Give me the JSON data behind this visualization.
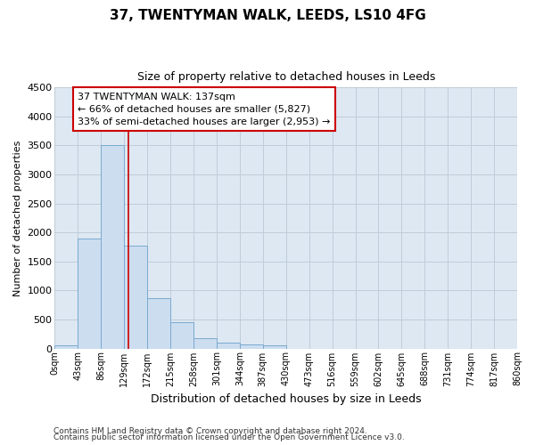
{
  "title": "37, TWENTYMAN WALK, LEEDS, LS10 4FG",
  "subtitle": "Size of property relative to detached houses in Leeds",
  "xlabel": "Distribution of detached houses by size in Leeds",
  "ylabel": "Number of detached properties",
  "footer_line1": "Contains HM Land Registry data © Crown copyright and database right 2024.",
  "footer_line2": "Contains public sector information licensed under the Open Government Licence v3.0.",
  "bar_edges": [
    0,
    43,
    86,
    129,
    172,
    215,
    258,
    301,
    344,
    387,
    430,
    473,
    516,
    559,
    602,
    645,
    688,
    731,
    774,
    817,
    860
  ],
  "bar_heights": [
    50,
    1900,
    3500,
    1775,
    860,
    460,
    175,
    95,
    65,
    50,
    0,
    0,
    0,
    0,
    0,
    0,
    0,
    0,
    0,
    0
  ],
  "bar_color": "#ccddf0",
  "bar_edgecolor": "#7aaad0",
  "grid_color": "#c0ccd8",
  "bg_color": "#dde8f2",
  "vline_x": 137,
  "vline_color": "#cc0000",
  "annotation_text": "37 TWENTYMAN WALK: 137sqm\n← 66% of detached houses are smaller (5,827)\n33% of semi-detached houses are larger (2,953) →",
  "annotation_box_edgecolor": "#cc0000",
  "ylim": [
    0,
    4500
  ],
  "xlim": [
    0,
    860
  ],
  "tick_labels": [
    "0sqm",
    "43sqm",
    "86sqm",
    "129sqm",
    "172sqm",
    "215sqm",
    "258sqm",
    "301sqm",
    "344sqm",
    "387sqm",
    "430sqm",
    "473sqm",
    "516sqm",
    "559sqm",
    "602sqm",
    "645sqm",
    "688sqm",
    "731sqm",
    "774sqm",
    "817sqm",
    "860sqm"
  ]
}
